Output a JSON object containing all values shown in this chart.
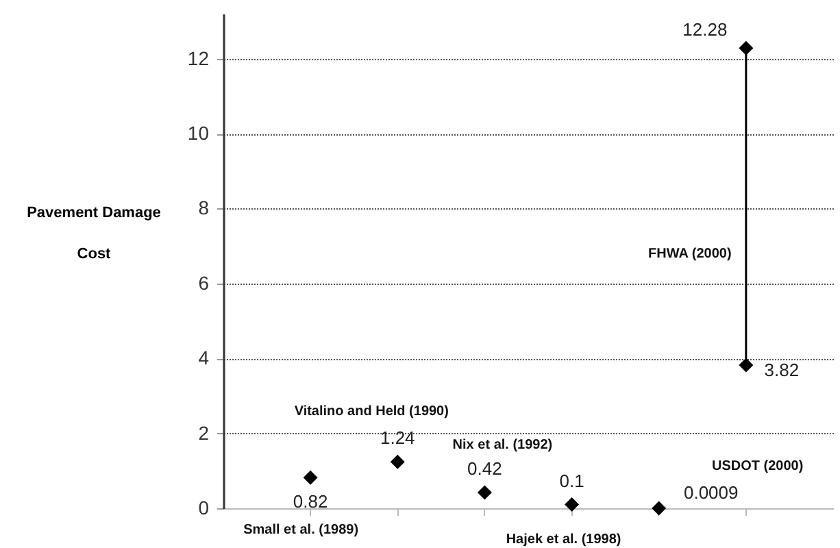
{
  "chart_data": {
    "type": "scatter",
    "ylabel": "Pavement Damage Cost",
    "categories": [
      null,
      null,
      null,
      null,
      null,
      null
    ],
    "series": [
      {
        "color": "#000000",
        "values": [
          0.82,
          1.24,
          0.42,
          0.1,
          0.0009,
          12.28
        ]
      },
      {
        "color": "#000000",
        "values": [
          null,
          null,
          null,
          null,
          null,
          3.82
        ]
      }
    ],
    "data_labels": true,
    "marker": "diamond",
    "ylim": [
      0,
      13.2
    ],
    "yticks": [
      0,
      2,
      4,
      6,
      8,
      10,
      12
    ],
    "grid": "y",
    "tick_labels": "y",
    "annotations": [
      "Small et al. (1989)",
      "Vitalino and Held (1990)",
      "Nix et al. (1992)",
      "Hajek et al. (1998)",
      "USDOT (2000)",
      "FHWA (2000)"
    ]
  }
}
